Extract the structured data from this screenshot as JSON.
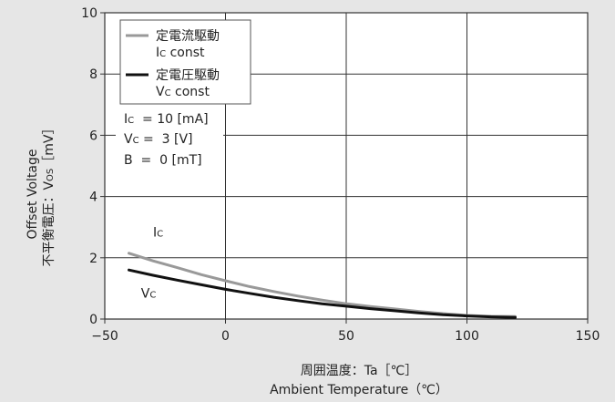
{
  "chart_data": {
    "type": "line",
    "xlabel_jp": "周囲温度：Ta［℃］",
    "xlabel_en": "Ambient Temperature（℃）",
    "ylabel_en": "Offset Voltage",
    "ylabel_jp_main": "不平衡電圧：V",
    "ylabel_jp_sub": "OS",
    "ylabel_jp_unit": "［mV］",
    "xlim": [
      -50,
      150
    ],
    "ylim": [
      0,
      10
    ],
    "x_ticks": [
      -50,
      0,
      50,
      100,
      150
    ],
    "y_ticks": [
      0,
      2,
      4,
      6,
      8,
      10
    ],
    "x_tick_labels": [
      "−50",
      "0",
      "50",
      "100",
      "150"
    ],
    "y_tick_labels": [
      "0",
      "2",
      "4",
      "6",
      "8",
      "10"
    ],
    "grid": true,
    "legend_position": "top-left",
    "series": [
      {
        "name": "定電流駆動",
        "legend_sub_main": "I",
        "legend_sub_sub": "C",
        "legend_sub_tail": " const",
        "label_main": "I",
        "label_sub": "C",
        "label_at": [
          -30,
          2.7
        ],
        "color": "#999999",
        "x": [
          -40,
          -30,
          -20,
          -10,
          0,
          10,
          20,
          30,
          40,
          50,
          60,
          70,
          80,
          90,
          100,
          110,
          120
        ],
        "y": [
          2.15,
          1.9,
          1.68,
          1.45,
          1.25,
          1.06,
          0.9,
          0.75,
          0.62,
          0.5,
          0.41,
          0.33,
          0.25,
          0.18,
          0.12,
          0.09,
          0.08
        ]
      },
      {
        "name": "定電圧駆動",
        "legend_sub_main": "V",
        "legend_sub_sub": "C",
        "legend_sub_tail": " const",
        "label_main": "V",
        "label_sub": "C",
        "label_at": [
          -35,
          0.7
        ],
        "color": "#111111",
        "x": [
          -40,
          -30,
          -20,
          -10,
          0,
          10,
          20,
          30,
          40,
          50,
          60,
          70,
          80,
          90,
          100,
          110,
          120
        ],
        "y": [
          1.6,
          1.43,
          1.27,
          1.12,
          0.97,
          0.84,
          0.71,
          0.6,
          0.5,
          0.42,
          0.34,
          0.27,
          0.2,
          0.14,
          0.1,
          0.07,
          0.05
        ]
      }
    ],
    "conditions": [
      {
        "main": "I",
        "sub": "C",
        "rest": "  = 10 [mA]"
      },
      {
        "main": "V",
        "sub": "C",
        "rest": " =  3 [V]"
      },
      {
        "main": "B",
        "sub": "",
        "rest": "  =  0 [mT]"
      }
    ]
  }
}
